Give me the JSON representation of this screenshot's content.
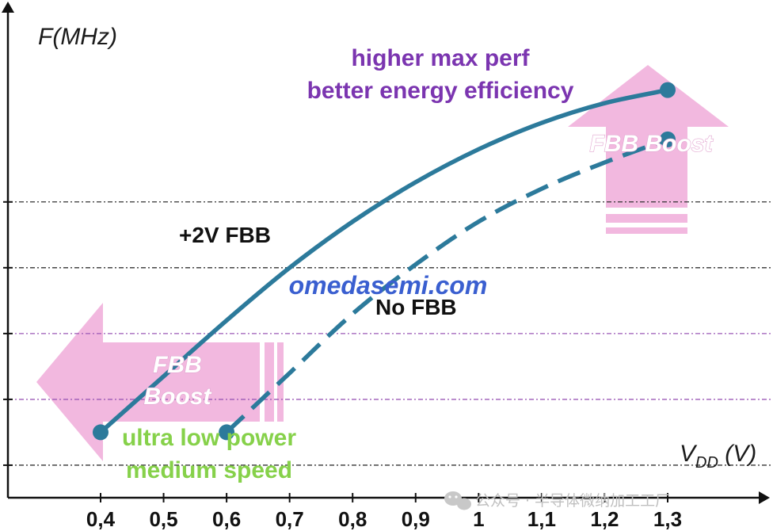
{
  "chart_data": {
    "type": "line",
    "xlabel_main": "V",
    "xlabel_sub": "DD",
    "xlabel_unit": " (V)",
    "ylabel": "F(MHz)",
    "x_ticks": [
      "0,4",
      "0,5",
      "0,6",
      "0,7",
      "0,8",
      "0,9",
      "1",
      "1,1",
      "1,2",
      "1,3"
    ],
    "series": [
      {
        "name": "+2V FBB",
        "style": "solid",
        "color": "#2c7a9b",
        "x": [
          0.4,
          0.5,
          0.6,
          0.7,
          0.8,
          0.9,
          1.0,
          1.1,
          1.2,
          1.3
        ],
        "y": [
          1.5,
          2.35,
          3.2,
          4.0,
          4.7,
          5.3,
          5.8,
          6.2,
          6.5,
          6.7
        ]
      },
      {
        "name": "No FBB",
        "style": "dashed",
        "color": "#2c7a9b",
        "x": [
          0.6,
          0.7,
          0.8,
          0.9,
          1.0,
          1.1,
          1.2,
          1.3
        ],
        "y": [
          1.5,
          2.4,
          3.3,
          4.05,
          4.7,
          5.2,
          5.6,
          5.95
        ]
      }
    ],
    "endpoints": {
      "+2V FBB": [
        [
          0.4,
          1.5
        ],
        [
          1.3,
          6.7
        ]
      ],
      "No FBB": [
        [
          0.6,
          1.5
        ],
        [
          1.3,
          5.95
        ]
      ]
    },
    "grid": {
      "y_levels": [
        1.0,
        2.0,
        3.0,
        4.0,
        5.0
      ],
      "colors": [
        "#333333",
        "#9b59b6",
        "#9b59b6",
        "#333333",
        "#333333"
      ]
    },
    "xlim": [
      0.2,
      1.45
    ],
    "ylim": [
      0,
      6.9
    ],
    "annotations": {
      "high_line1": "higher max perf",
      "high_line2": "better energy efficiency",
      "low_line1": "ultra low power",
      "low_line2": "medium speed",
      "boost_up": "FBB Boost",
      "boost_left_line1": "FBB",
      "boost_left_line2": "Boost"
    },
    "watermark": "omedasemi.com",
    "source_caption": "公众号 · 半导体微纳加工工厂",
    "colors": {
      "series": "#2c7a9b",
      "arrow": "#f2b8df",
      "purple_text": "#7b35b0",
      "green_text": "#86d14a",
      "watermark": "#3a5fd0"
    }
  }
}
